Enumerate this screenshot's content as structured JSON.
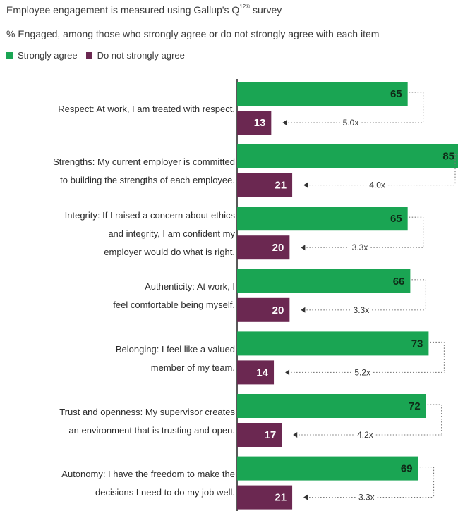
{
  "header": {
    "title_main": "Employee engagement is measured using Gallup's Q",
    "title_sup": "12®",
    "title_tail": " survey",
    "subtitle": "% Engaged, among those who strongly agree or do not strongly agree with each item"
  },
  "legend": {
    "items": [
      {
        "label": "Strongly agree",
        "color": "#1aa553"
      },
      {
        "label": "Do not strongly agree",
        "color": "#6b2851"
      }
    ]
  },
  "chart_data": {
    "type": "bar",
    "orientation": "horizontal",
    "categories": [
      [
        "Respect: At work, I am treated with respect."
      ],
      [
        "Strengths: My current employer is committed",
        "to building the strengths of each employee."
      ],
      [
        "Integrity: If I raised a concern about ethics",
        "and integrity, I am confident my",
        "employer would do what is right."
      ],
      [
        "Authenticity: At work, I",
        "feel comfortable being myself."
      ],
      [
        "Belonging: I feel like a valued",
        "member of my team."
      ],
      [
        "Trust and openness: My supervisor creates",
        "an environment that is trusting and open."
      ],
      [
        "Autonomy: I have the freedom to make the",
        "decisions I need to do my job well."
      ]
    ],
    "series": [
      {
        "name": "Strongly agree",
        "color": "#1aa553",
        "values": [
          65,
          85,
          65,
          66,
          73,
          72,
          69
        ]
      },
      {
        "name": "Do not strongly agree",
        "color": "#6b2851",
        "values": [
          13,
          21,
          20,
          20,
          14,
          17,
          21
        ]
      }
    ],
    "ratios": [
      "5.0x",
      "4.0x",
      "3.3x",
      "3.3x",
      "5.2x",
      "4.2x",
      "3.3x"
    ],
    "xlim": [
      0,
      85
    ]
  }
}
